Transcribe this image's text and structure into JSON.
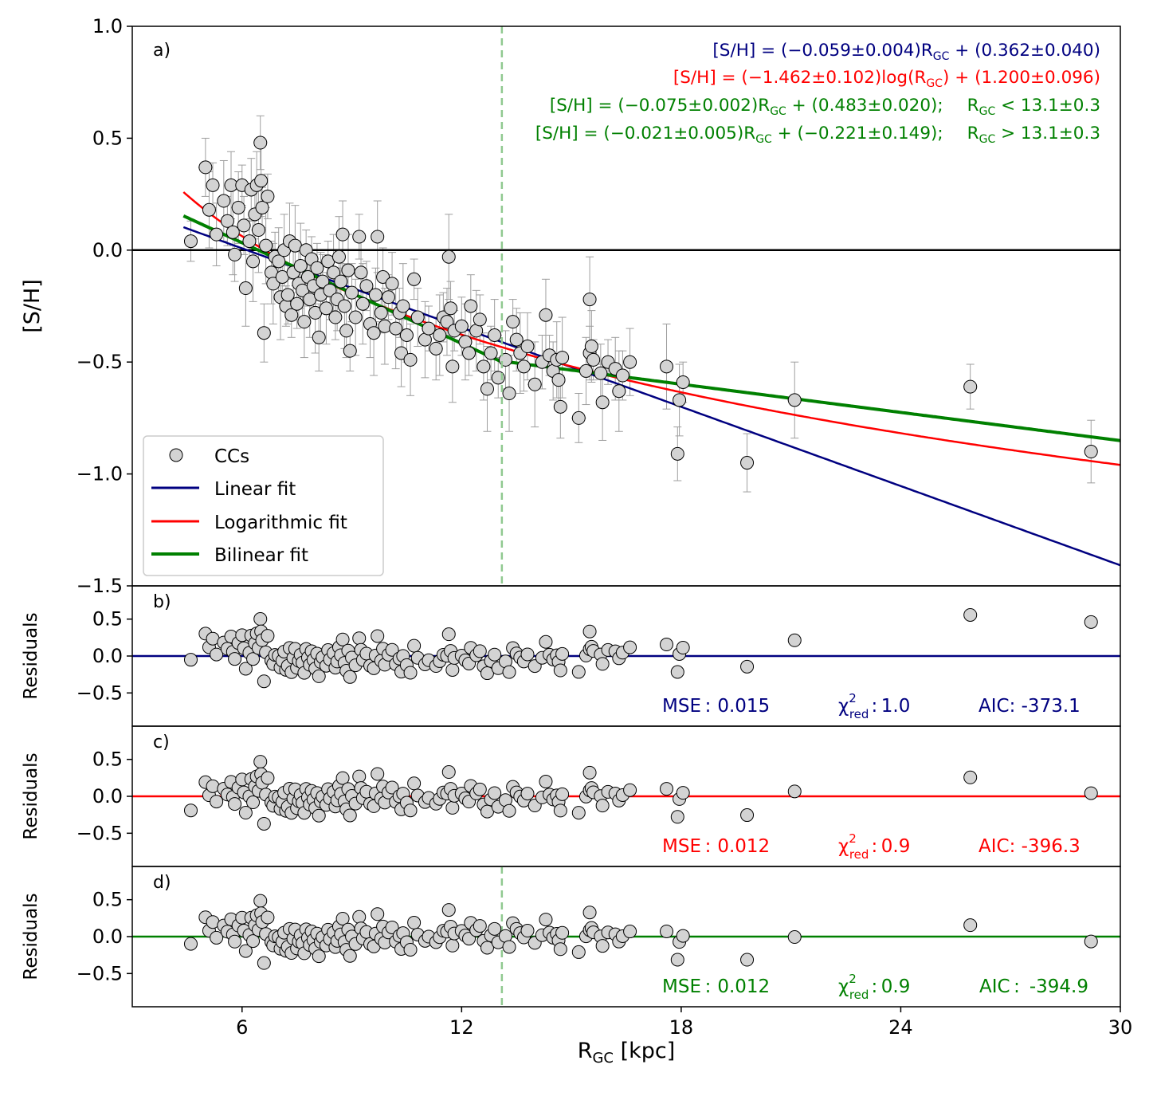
{
  "figure": {
    "xlabel": "R",
    "xlabel_sub": "GC",
    "xlabel_unit": " [kpc]",
    "xlim": [
      3,
      30
    ],
    "xticks": [
      "6",
      "12",
      "18",
      "24",
      "30"
    ],
    "break_radius_kpc": 13.1,
    "colors": {
      "linear": "#000080",
      "log": "#ff0000",
      "bilinear": "#008000",
      "break_line": "#90c990",
      "points": "#d3d3d3",
      "errorbars": "#9e9e9e"
    }
  },
  "chart_data": [
    {
      "panel": "a",
      "type": "scatter",
      "title": "",
      "panel_label": "a)",
      "ylabel": "[S/H]",
      "xlim": [
        3,
        30
      ],
      "ylim": [
        -1.5,
        1.0
      ],
      "yticks": [
        "1.0",
        "0.5",
        "0.0",
        "−0.5",
        "−1.0",
        "−1.5"
      ],
      "legend": {
        "placement": "lower-left",
        "entries": [
          "CCs",
          "Linear fit",
          "Logarithmic fit",
          "Bilinear fit"
        ]
      },
      "equations": [
        {
          "pre": "[S/H] = (−0.059±0.004)R",
          "sub": "GC",
          "post": " + (0.362±0.040)",
          "cond_pre": "",
          "cond_sub": "",
          "cond_post": "",
          "color": "#000080"
        },
        {
          "pre": "[S/H] = (−1.462±0.102)log(R",
          "sub": "GC",
          "post": ") + (1.200±0.096)",
          "cond_pre": "",
          "cond_sub": "",
          "cond_post": "",
          "color": "#ff0000"
        },
        {
          "pre": "[S/H] = (−0.075±0.002)R",
          "sub": "GC",
          "post": " + (0.483±0.020);",
          "cond_pre": "R",
          "cond_sub": "GC",
          "cond_post": " < 13.1±0.3",
          "color": "#008000"
        },
        {
          "pre": "[S/H] = (−0.021±0.005)R",
          "sub": "GC",
          "post": " + (−0.221±0.149);",
          "cond_pre": "R",
          "cond_sub": "GC",
          "cond_post": " > 13.1±0.3",
          "color": "#008000"
        }
      ],
      "series": [
        {
          "name": "Linear fit",
          "model": "linear",
          "slope": -0.059,
          "intercept": 0.362,
          "x_range": [
            4.4,
            30
          ]
        },
        {
          "name": "Logarithmic fit",
          "model": "log",
          "slope": -1.462,
          "intercept": 1.2,
          "x_range": [
            4.4,
            30
          ]
        },
        {
          "name": "Bilinear fit",
          "model": "bilinear",
          "slope1": -0.075,
          "intercept1": 0.483,
          "slope2": -0.021,
          "intercept2": -0.221,
          "break": 13.1,
          "x_range": [
            4.4,
            30
          ]
        }
      ],
      "points": [
        [
          4.6,
          0.04
        ],
        [
          5.0,
          0.37
        ],
        [
          5.1,
          0.18
        ],
        [
          5.2,
          0.29
        ],
        [
          5.3,
          0.07
        ],
        [
          5.5,
          0.22
        ],
        [
          5.6,
          0.13
        ],
        [
          5.7,
          0.29
        ],
        [
          5.75,
          0.08
        ],
        [
          5.8,
          -0.02
        ],
        [
          5.9,
          0.19
        ],
        [
          6.0,
          0.29
        ],
        [
          6.05,
          0.11
        ],
        [
          6.1,
          -0.17
        ],
        [
          6.2,
          0.04
        ],
        [
          6.25,
          0.27
        ],
        [
          6.3,
          -0.05
        ],
        [
          6.35,
          0.16
        ],
        [
          6.4,
          0.29
        ],
        [
          6.45,
          0.09
        ],
        [
          6.5,
          0.48
        ],
        [
          6.52,
          0.31
        ],
        [
          6.55,
          0.19
        ],
        [
          6.6,
          -0.37
        ],
        [
          6.65,
          0.02
        ],
        [
          6.7,
          0.24
        ],
        [
          6.8,
          -0.1
        ],
        [
          6.85,
          -0.15
        ],
        [
          6.9,
          -0.03
        ],
        [
          7.0,
          -0.05
        ],
        [
          7.05,
          -0.21
        ],
        [
          7.1,
          -0.12
        ],
        [
          7.15,
          0.0
        ],
        [
          7.2,
          -0.25
        ],
        [
          7.25,
          -0.2
        ],
        [
          7.3,
          0.04
        ],
        [
          7.35,
          -0.29
        ],
        [
          7.4,
          -0.1
        ],
        [
          7.45,
          0.02
        ],
        [
          7.5,
          -0.24
        ],
        [
          7.55,
          -0.15
        ],
        [
          7.6,
          -0.07
        ],
        [
          7.65,
          -0.18
        ],
        [
          7.7,
          -0.32
        ],
        [
          7.75,
          0.0
        ],
        [
          7.8,
          -0.12
        ],
        [
          7.85,
          -0.22
        ],
        [
          7.9,
          -0.04
        ],
        [
          7.95,
          -0.16
        ],
        [
          8.0,
          -0.28
        ],
        [
          8.05,
          -0.08
        ],
        [
          8.1,
          -0.39
        ],
        [
          8.15,
          -0.2
        ],
        [
          8.2,
          -0.14
        ],
        [
          8.3,
          -0.26
        ],
        [
          8.35,
          -0.05
        ],
        [
          8.4,
          -0.18
        ],
        [
          8.5,
          -0.1
        ],
        [
          8.55,
          -0.3
        ],
        [
          8.6,
          -0.22
        ],
        [
          8.65,
          -0.03
        ],
        [
          8.7,
          -0.14
        ],
        [
          8.75,
          0.07
        ],
        [
          8.8,
          -0.25
        ],
        [
          8.85,
          -0.36
        ],
        [
          8.9,
          -0.09
        ],
        [
          8.95,
          -0.45
        ],
        [
          9.0,
          -0.19
        ],
        [
          9.1,
          -0.3
        ],
        [
          9.2,
          0.06
        ],
        [
          9.25,
          -0.1
        ],
        [
          9.3,
          -0.24
        ],
        [
          9.4,
          -0.16
        ],
        [
          9.5,
          -0.33
        ],
        [
          9.6,
          -0.37
        ],
        [
          9.65,
          -0.2
        ],
        [
          9.7,
          0.06
        ],
        [
          9.8,
          -0.28
        ],
        [
          9.85,
          -0.12
        ],
        [
          9.9,
          -0.34
        ],
        [
          10.0,
          -0.21
        ],
        [
          10.1,
          -0.15
        ],
        [
          10.2,
          -0.35
        ],
        [
          10.3,
          -0.28
        ],
        [
          10.35,
          -0.46
        ],
        [
          10.4,
          -0.25
        ],
        [
          10.5,
          -0.38
        ],
        [
          10.6,
          -0.49
        ],
        [
          10.7,
          -0.13
        ],
        [
          10.8,
          -0.3
        ],
        [
          11.0,
          -0.4
        ],
        [
          11.1,
          -0.35
        ],
        [
          11.3,
          -0.44
        ],
        [
          11.4,
          -0.38
        ],
        [
          11.5,
          -0.3
        ],
        [
          11.6,
          -0.32
        ],
        [
          11.65,
          -0.03
        ],
        [
          11.7,
          -0.26
        ],
        [
          11.75,
          -0.52
        ],
        [
          11.8,
          -0.36
        ],
        [
          12.0,
          -0.34
        ],
        [
          12.1,
          -0.41
        ],
        [
          12.2,
          -0.46
        ],
        [
          12.25,
          -0.25
        ],
        [
          12.4,
          -0.36
        ],
        [
          12.5,
          -0.31
        ],
        [
          12.6,
          -0.52
        ],
        [
          12.7,
          -0.62
        ],
        [
          12.8,
          -0.46
        ],
        [
          12.9,
          -0.38
        ],
        [
          13.0,
          -0.57
        ],
        [
          13.2,
          -0.49
        ],
        [
          13.3,
          -0.64
        ],
        [
          13.4,
          -0.32
        ],
        [
          13.5,
          -0.4
        ],
        [
          13.6,
          -0.46
        ],
        [
          13.7,
          -0.52
        ],
        [
          13.8,
          -0.43
        ],
        [
          14.0,
          -0.6
        ],
        [
          14.2,
          -0.5
        ],
        [
          14.3,
          -0.29
        ],
        [
          14.4,
          -0.47
        ],
        [
          14.5,
          -0.54
        ],
        [
          14.6,
          -0.49
        ],
        [
          14.65,
          -0.58
        ],
        [
          14.7,
          -0.7
        ],
        [
          14.75,
          -0.48
        ],
        [
          15.2,
          -0.75
        ],
        [
          15.4,
          -0.54
        ],
        [
          15.5,
          -0.22
        ],
        [
          15.5,
          -0.46
        ],
        [
          15.55,
          -0.43
        ],
        [
          15.6,
          -0.49
        ],
        [
          15.8,
          -0.55
        ],
        [
          15.85,
          -0.68
        ],
        [
          16.0,
          -0.5
        ],
        [
          16.2,
          -0.53
        ],
        [
          16.3,
          -0.63
        ],
        [
          16.4,
          -0.56
        ],
        [
          16.6,
          -0.5
        ],
        [
          17.6,
          -0.52
        ],
        [
          17.9,
          -0.91
        ],
        [
          17.95,
          -0.67
        ],
        [
          18.05,
          -0.59
        ],
        [
          19.8,
          -0.95
        ],
        [
          21.1,
          -0.67
        ],
        [
          25.9,
          -0.61
        ],
        [
          29.2,
          -0.9
        ]
      ]
    },
    {
      "panel": "b",
      "type": "scatter",
      "title": "",
      "panel_label": "b)",
      "ylabel": "Residuals",
      "ylim": [
        -0.95,
        0.95
      ],
      "yticks": [
        "0.5",
        "0.0",
        "−0.5"
      ],
      "reference_model": "linear",
      "stats": {
        "mse_label": "MSE :",
        "mse": "0.015",
        "chi_label": "χ",
        "chi_sup": "2",
        "chi_sub": "red",
        "chi_value": ": 1.0",
        "aic": "AIC: -373.1"
      },
      "color": "#000080"
    },
    {
      "panel": "c",
      "type": "scatter",
      "title": "",
      "panel_label": "c)",
      "ylabel": "Residuals",
      "ylim": [
        -0.95,
        0.95
      ],
      "yticks": [
        "0.5",
        "0.0",
        "−0.5"
      ],
      "reference_model": "log",
      "stats": {
        "mse_label": "MSE :",
        "mse": "0.012",
        "chi_label": "χ",
        "chi_sup": "2",
        "chi_sub": "red",
        "chi_value": ": 0.9",
        "aic": "AIC: -396.3"
      },
      "color": "#ff0000"
    },
    {
      "panel": "d",
      "type": "scatter",
      "title": "",
      "panel_label": "d)",
      "ylabel": "Residuals",
      "ylim": [
        -0.95,
        0.95
      ],
      "yticks": [
        "0.5",
        "0.0",
        "−0.5"
      ],
      "reference_model": "bilinear",
      "stats": {
        "mse_label": "MSE :",
        "mse": "0.012",
        "chi_label": "χ",
        "chi_sup": "2",
        "chi_sub": "red",
        "chi_value": ": 0.9",
        "aic": "AIC :  -394.9"
      },
      "color": "#008000"
    }
  ]
}
